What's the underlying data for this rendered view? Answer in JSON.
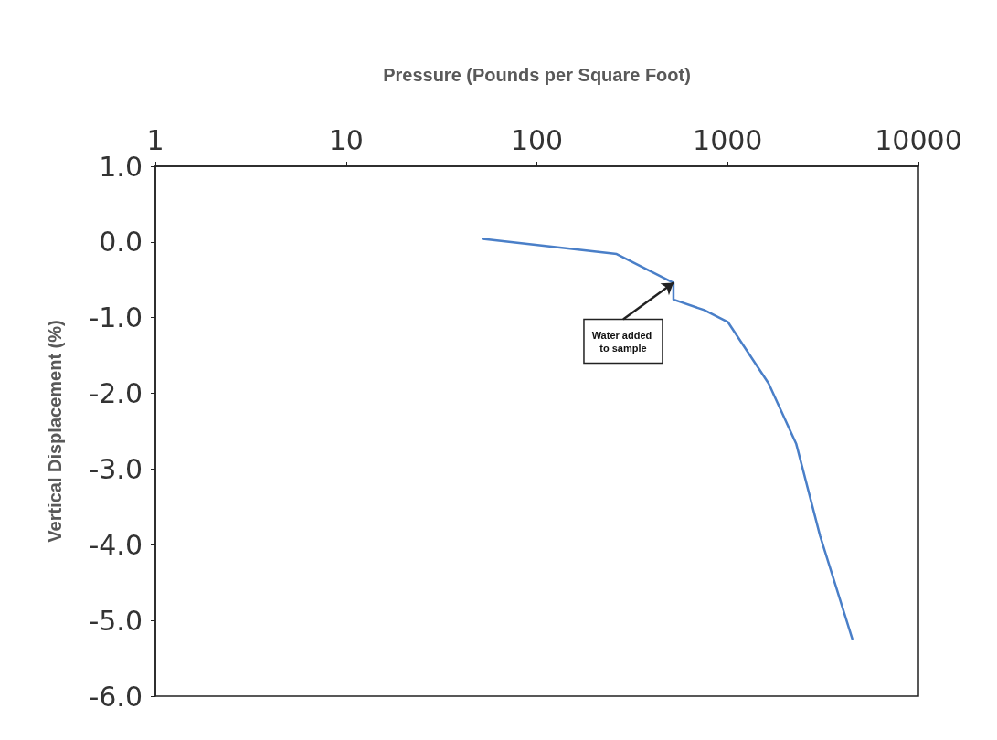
{
  "chart_data": {
    "type": "line",
    "xlabel": "Pressure (Pounds per Square Foot)",
    "ylabel": "Vertical Displacement (%)",
    "log": "x",
    "xlim": [
      1,
      10000
    ],
    "xticks": [
      1,
      10,
      100,
      1000,
      10000
    ],
    "ylim": [
      -6,
      1
    ],
    "yticks": [
      {
        "value": -6,
        "label": "-6.0"
      },
      {
        "value": -5,
        "label": "-5.0"
      },
      {
        "value": -4,
        "label": "-4.0"
      },
      {
        "value": -3,
        "label": "-3.0"
      },
      {
        "value": -2,
        "label": "-2.0"
      },
      {
        "value": -1,
        "label": "-1.0"
      },
      {
        "value": 0,
        "label": "0.0"
      },
      {
        "value": 1,
        "label": "1.0"
      }
    ],
    "grid": false,
    "marker": "none",
    "line_style": "solid",
    "series": [
      {
        "color": "#4a7fc8",
        "x": [
          52,
          262,
          520,
          520,
          754,
          1005,
          1640,
          2290,
          3050,
          4500
        ],
        "values": [
          0.04,
          -0.16,
          -0.54,
          -0.76,
          -0.9,
          -1.06,
          -1.87,
          -2.67,
          -3.88,
          -5.24
        ]
      }
    ],
    "annotations": [
      {
        "text": "Water added to sample",
        "x": 520,
        "y": -0.54
      }
    ]
  }
}
